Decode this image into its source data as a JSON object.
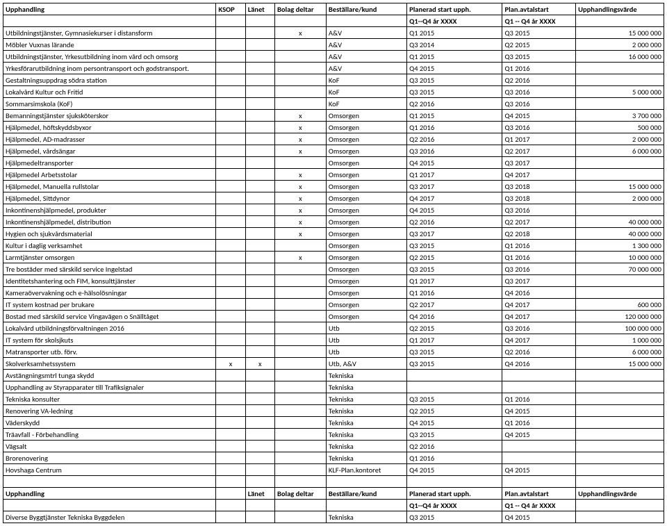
{
  "headers": {
    "upphandling": "Upphandling",
    "ksop": "KSOP",
    "lanet": "Länet",
    "bolag": "Bolag deltar",
    "bestallare": "Beställare/kund",
    "planstart": "Planerad start upph.",
    "planavtal": "Plan.avtalstart",
    "varde": "Upphandlingsvärde",
    "sub_planstart": "Q1--Q4 år XXXX",
    "sub_planavtal": "Q1 -- Q4 år XXXX"
  },
  "headers2": {
    "upphandling": "Upphandling",
    "lanet": "Länet",
    "bolag": "Bolag deltar",
    "bestallare": "Beställare/kund",
    "planstart": "Planerad start  upph.",
    "planavtal": "Plan.avtalstart",
    "varde": "Upphandlingsvärde",
    "sub_planstart": "Q1--Q4 år XXXX",
    "sub_planavtal": "Q1 -- Q4 år XXXX"
  },
  "rows": [
    {
      "u": "Utbildningstjänster, Gymnasiekurser i distansform",
      "k": "",
      "l": "",
      "b": "x",
      "be": "A&V",
      "ps": "Q1 2015",
      "pa": "Q3 2015",
      "v": "15 000 000"
    },
    {
      "u": "Möbler Vuxnas lärande",
      "k": "",
      "l": "",
      "b": "",
      "be": "A&V",
      "ps": "Q3 2014",
      "pa": "Q2 2015",
      "v": "2 000 000"
    },
    {
      "u": "Utbildningstjänster, Yrkesutbildning inom vård och omsorg",
      "k": "",
      "l": "",
      "b": "",
      "be": "A&V",
      "ps": "Q1 2015",
      "pa": "Q3 2015",
      "v": "16 000 000"
    },
    {
      "u": "Yrkesförarutbildning inom persontransport och godstransport.",
      "k": "",
      "l": "",
      "b": "",
      "be": "A&V",
      "ps": "Q4 2015",
      "pa": "Q1 2016",
      "v": ""
    },
    {
      "u": "Gestaltningsuppdrag södra station",
      "k": "",
      "l": "",
      "b": "",
      "be": "KoF",
      "ps": "Q3 2015",
      "pa": "Q2 2016",
      "v": ""
    },
    {
      "u": "Lokalvård Kultur och Fritid",
      "k": "",
      "l": "",
      "b": "",
      "be": "KoF",
      "ps": "Q3 2015",
      "pa": "Q3 2016",
      "v": "5 000 000"
    },
    {
      "u": "Sommarsimskola (KoF)",
      "k": "",
      "l": "",
      "b": "",
      "be": "KoF",
      "ps": "Q2 2016",
      "pa": "Q3 2016",
      "v": ""
    },
    {
      "u": "Bemanningstjänster sjuksköterskor",
      "k": "",
      "l": "",
      "b": "x",
      "be": "Omsorgen",
      "ps": "Q1 2015",
      "pa": "Q4 2015",
      "v": "3 700 000"
    },
    {
      "u": "Hjälpmedel, höftskyddsbyxor",
      "k": "",
      "l": "",
      "b": "x",
      "be": "Omsorgen",
      "ps": "Q1 2016",
      "pa": "Q3 2016",
      "v": "500 000"
    },
    {
      "u": "Hjälpmedel, AD-madrasser",
      "k": "",
      "l": "",
      "b": "x",
      "be": "Omsorgen",
      "ps": "Q2 2016",
      "pa": "Q1 2017",
      "v": "2 000 000"
    },
    {
      "u": "Hjälpmedel, vårdsängar",
      "k": "",
      "l": "",
      "b": "x",
      "be": "Omsorgen",
      "ps": "Q3 2016",
      "pa": "Q2 2017",
      "v": "6 000 000"
    },
    {
      "u": "Hjälpmedeltransporter",
      "k": "",
      "l": "",
      "b": "",
      "be": "Omsorgen",
      "ps": "Q4 2015",
      "pa": "Q3 2017",
      "v": ""
    },
    {
      "u": "Hjälpmedel Arbetsstolar",
      "k": "",
      "l": "",
      "b": "x",
      "be": "Omsorgen",
      "ps": "Q1 2017",
      "pa": "Q4 2017",
      "v": ""
    },
    {
      "u": "Hjälpmedel, Manuella rullstolar",
      "k": "",
      "l": "",
      "b": "x",
      "be": "Omsorgen",
      "ps": "Q3 2017",
      "pa": "Q3 2018",
      "v": "15 000 000"
    },
    {
      "u": "Hjälpmedel, Sittdynor",
      "k": "",
      "l": "",
      "b": "x",
      "be": "Omsorgen",
      "ps": "Q4 2017",
      "pa": "Q3 2018",
      "v": "2 000 000"
    },
    {
      "u": "Inkontinenshjälpmedel, produkter",
      "k": "",
      "l": "",
      "b": "x",
      "be": "Omsorgen",
      "ps": "Q4 2015",
      "pa": "Q3 2016",
      "v": ""
    },
    {
      "u": "Inkontinenshjälpmedel, distribution",
      "k": "",
      "l": "",
      "b": "x",
      "be": "Omsorgen",
      "ps": "Q2 2016",
      "pa": "Q2 2017",
      "v": "40 000 000"
    },
    {
      "u": "Hygien och sjukvårdsmaterial",
      "k": "",
      "l": "",
      "b": "x",
      "be": "Omsorgen",
      "ps": "Q3 2017",
      "pa": "Q2 2018",
      "v": "40 000 000"
    },
    {
      "u": "Kultur i daglig verksamhet",
      "k": "",
      "l": "",
      "b": "",
      "be": "Omsorgen",
      "ps": "Q3 2015",
      "pa": "Q1 2016",
      "v": "1 300 000"
    },
    {
      "u": "Larmtjänster omsorgen",
      "k": "",
      "l": "",
      "b": "x",
      "be": "Omsorgen",
      "ps": "Q2 2015",
      "pa": "Q1 2016",
      "v": "10 000 000"
    },
    {
      "u": "Tre bostäder med särskild service  Ingelstad",
      "k": "",
      "l": "",
      "b": "",
      "be": "Omsorgen",
      "ps": "Q3 2015",
      "pa": "Q3 2016",
      "v": "70 000 000"
    },
    {
      "u": "Identitetshantering och FIM, konsulttjänster",
      "k": "",
      "l": "",
      "b": "",
      "be": "Omsorgen",
      "ps": "Q1 2017",
      "pa": "Q3 2017",
      "v": ""
    },
    {
      "u": "Kameraövervakning och e-hälsolösningar",
      "k": "",
      "l": "",
      "b": "",
      "be": "Omsorgen",
      "ps": "Q1 2016",
      "pa": "Q4 2016",
      "v": ""
    },
    {
      "u": "IT system kostnad per brukare",
      "k": "",
      "l": "",
      "b": "",
      "be": "Omsorgen",
      "ps": "Q2 2017",
      "pa": "Q4 2017",
      "v": "600 000"
    },
    {
      "u": "Bostad med särskild service Vingavägen o Snälltåget",
      "k": "",
      "l": "",
      "b": "",
      "be": "Omsorgen",
      "ps": "Q4 2016",
      "pa": "Q4 2017",
      "v": "120 000 000"
    },
    {
      "u": "Lokalvård utbildningsförvaltningen 2016",
      "k": "",
      "l": "",
      "b": "",
      "be": "Utb",
      "ps": "Q2 2015",
      "pa": "Q3 2016",
      "v": "100 000 000"
    },
    {
      "u": "IT system för skolsjkuts",
      "k": "",
      "l": "",
      "b": "",
      "be": "Utb",
      "ps": "Q1 2017",
      "pa": "Q4 2017",
      "v": "1 000 000"
    },
    {
      "u": "Matransporter utb. förv.",
      "k": "",
      "l": "",
      "b": "",
      "be": "Utb",
      "ps": "Q3 2015",
      "pa": "Q2 2016",
      "v": "6 000 000"
    },
    {
      "u": "Skolverksamhetssystem",
      "k": "x",
      "l": "x",
      "b": "",
      "be": "Utb, A&V",
      "ps": "Q3 2015",
      "pa": "Q4 2016",
      "v": "15 000 000"
    },
    {
      "u": "Avstängningsmtrl tunga skydd",
      "k": "",
      "l": "",
      "b": "",
      "be": "Tekniska",
      "ps": "",
      "pa": "",
      "v": ""
    },
    {
      "u": "Upphandling av Styrapparater till Trafiksignaler",
      "k": "",
      "l": "",
      "b": "",
      "be": "Tekniska",
      "ps": "",
      "pa": "",
      "v": ""
    },
    {
      "u": "Tekniska konsulter",
      "k": "",
      "l": "",
      "b": "",
      "be": "Tekniska",
      "ps": "Q3 2015",
      "pa": "Q1 2016",
      "v": ""
    },
    {
      "u": "Renovering VA-ledning",
      "k": "",
      "l": "",
      "b": "",
      "be": "Tekniska",
      "ps": "Q2 2015",
      "pa": "Q4 2015",
      "v": ""
    },
    {
      "u": "Väderskydd",
      "k": "",
      "l": "",
      "b": "",
      "be": "Tekniska",
      "ps": "Q4 2015",
      "pa": "Q1 2016",
      "v": ""
    },
    {
      "u": "Träavfall - Förbehandling",
      "k": "",
      "l": "",
      "b": "",
      "be": "Tekniska",
      "ps": "Q3 2015",
      "pa": "Q4 2015",
      "v": ""
    },
    {
      "u": "Vägsalt",
      "k": "",
      "l": "",
      "b": "",
      "be": "Tekniska",
      "ps": "Q2 2016",
      "pa": "",
      "v": ""
    },
    {
      "u": "Brorenovering",
      "k": "",
      "l": "",
      "b": "",
      "be": "Tekniska",
      "ps": "Q1 2016",
      "pa": "",
      "v": ""
    },
    {
      "u": "Hovshaga Centrum",
      "k": "",
      "l": "",
      "b": "",
      "be": "KLF-Plan.kontoret",
      "ps": "Q4 2015",
      "pa": "Q4 2015",
      "v": ""
    }
  ],
  "rows2": [
    {
      "u": "Diverse Byggtjänster Tekniska Byggdelen",
      "k": "",
      "l": "",
      "b": "",
      "be": "Tekniska",
      "ps": "Q3 2015",
      "pa": "Q4 2015",
      "v": ""
    }
  ]
}
